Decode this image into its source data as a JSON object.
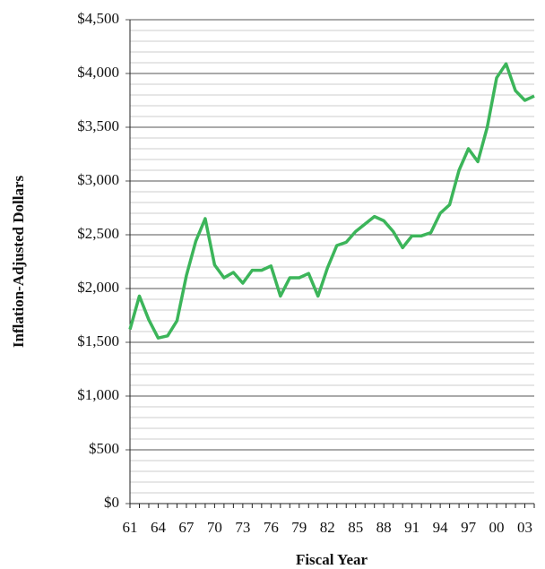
{
  "chart_data": {
    "type": "line",
    "x_label": "Fiscal Year",
    "y_label": "Inflation-Adjusted Dollars",
    "categories": [
      "61",
      null,
      null,
      "64",
      null,
      null,
      "67",
      null,
      null,
      "70",
      null,
      null,
      "73",
      null,
      null,
      "76",
      null,
      null,
      "79",
      null,
      null,
      "82",
      null,
      null,
      "85",
      null,
      null,
      "88",
      null,
      null,
      "91",
      null,
      null,
      "94",
      null,
      null,
      "97",
      null,
      null,
      "00",
      null,
      null,
      "03",
      null
    ],
    "series": [
      {
        "color": "#3cb55a",
        "values": [
          1620,
          1930,
          1710,
          1540,
          1560,
          1700,
          2120,
          2440,
          2650,
          2220,
          2100,
          2150,
          2050,
          2170,
          2170,
          2210,
          1930,
          2100,
          2100,
          2140,
          1930,
          2190,
          2400,
          2430,
          2530,
          2600,
          2670,
          2630,
          2530,
          2380,
          2490,
          2490,
          2520,
          2700,
          2780,
          3100,
          3300,
          3180,
          3500,
          3960,
          4090,
          3840,
          3750,
          3790
        ]
      }
    ],
    "ylim": [
      0,
      4500
    ],
    "yticks": [
      {
        "value": 0,
        "label": "$0"
      },
      {
        "value": 500,
        "label": "$500"
      },
      {
        "value": 1000,
        "label": "$1,000"
      },
      {
        "value": 1500,
        "label": "$1,500"
      },
      {
        "value": 2000,
        "label": "$2,000"
      },
      {
        "value": 2500,
        "label": "$2,500"
      },
      {
        "value": 3000,
        "label": "$3,000"
      },
      {
        "value": 3500,
        "label": "$3,500"
      },
      {
        "value": 4000,
        "label": "$4,000"
      },
      {
        "value": 4500,
        "label": "$4,500"
      }
    ],
    "minor_yticks": [
      100,
      200,
      300,
      400,
      600,
      700,
      800,
      900,
      1100,
      1200,
      1300,
      1400,
      1600,
      1700,
      1800,
      1900,
      2100,
      2200,
      2300,
      2400,
      2600,
      2700,
      2800,
      2900,
      3100,
      3200,
      3300,
      3400,
      3600,
      3700,
      3800,
      3900,
      4100,
      4200,
      4300,
      4400
    ],
    "grid": true
  }
}
